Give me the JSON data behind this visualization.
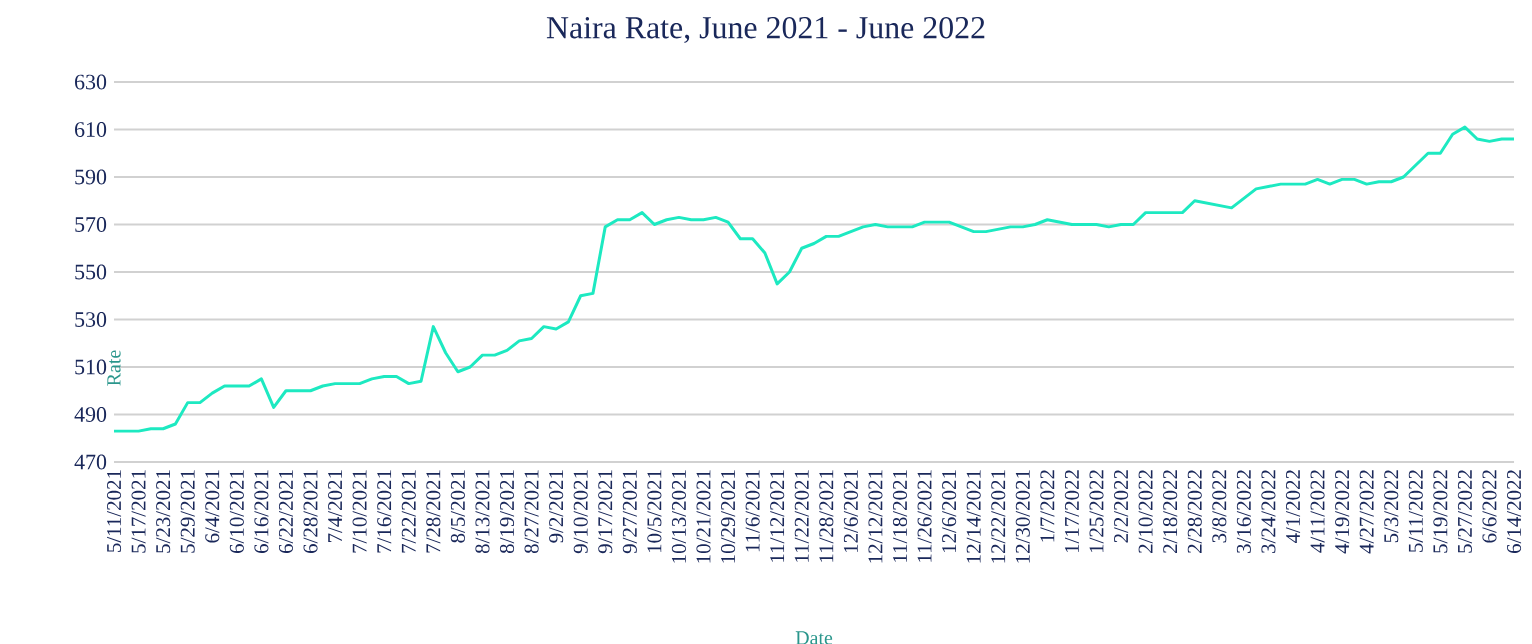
{
  "chart_data": {
    "type": "line",
    "title": "Naira Rate, June 2021 - June 2022",
    "xlabel": "Date",
    "ylabel": "Rate",
    "categories": [
      "5/11/2021",
      null,
      "5/17/2021",
      null,
      "5/23/2021",
      null,
      "5/29/2021",
      null,
      "6/4/2021",
      null,
      "6/10/2021",
      null,
      "6/16/2021",
      null,
      "6/22/2021",
      null,
      "6/28/2021",
      null,
      "7/4/2021",
      null,
      "7/10/2021",
      null,
      "7/16/2021",
      null,
      "7/22/2021",
      null,
      "7/28/2021",
      null,
      "8/5/2021",
      null,
      "8/13/2021",
      null,
      "8/19/2021",
      null,
      "8/27/2021",
      null,
      "9/2/2021",
      null,
      "9/10/2021",
      null,
      "9/17/2021",
      null,
      "9/27/2021",
      null,
      "10/5/2021",
      null,
      "10/13/2021",
      null,
      "10/21/2021",
      null,
      "10/29/2021",
      null,
      "11/6/2021",
      null,
      "11/12/2021",
      null,
      "11/22/2021",
      null,
      "11/28/2021",
      null,
      "12/6/2021",
      null,
      "12/12/2021",
      null,
      "11/18/2021",
      null,
      "11/26/2021",
      null,
      "12/6/2021",
      null,
      "12/14/2021",
      null,
      "12/22/2021",
      null,
      "12/30/2021",
      null,
      "1/7/2022",
      null,
      "1/17/2022",
      null,
      "1/25/2022",
      null,
      "2/2/2022",
      null,
      "2/10/2022",
      null,
      "2/18/2022",
      null,
      "2/28/2022",
      null,
      "3/8/2022",
      null,
      "3/16/2022",
      null,
      "3/24/2022",
      null,
      "4/1/2022",
      null,
      "4/11/2022",
      null,
      "4/19/2022",
      null,
      "4/27/2022",
      null,
      "5/3/2022",
      null,
      "5/11/2022",
      null,
      "5/19/2022",
      null,
      "5/27/2022",
      null,
      "6/6/2022",
      null,
      "6/14/2022"
    ],
    "series": [
      {
        "color": "#1de9c1",
        "values": [
          483,
          483,
          483,
          484,
          484,
          486,
          495,
          495,
          499,
          502,
          502,
          502,
          505,
          493,
          500,
          500,
          500,
          502,
          503,
          503,
          503,
          505,
          506,
          506,
          503,
          504,
          527,
          516,
          508,
          510,
          515,
          515,
          517,
          521,
          522,
          527,
          526,
          529,
          540,
          541,
          569,
          572,
          572,
          575,
          570,
          572,
          573,
          572,
          572,
          573,
          571,
          564,
          564,
          558,
          545,
          550,
          560,
          562,
          565,
          565,
          567,
          569,
          570,
          569,
          569,
          569,
          571,
          571,
          571,
          569,
          567,
          567,
          568,
          569,
          569,
          570,
          572,
          571,
          570,
          570,
          570,
          569,
          570,
          570,
          575,
          575,
          575,
          575,
          580,
          579,
          578,
          577,
          581,
          585,
          586,
          587,
          587,
          587,
          589,
          587,
          589,
          589,
          587,
          588,
          588,
          590,
          595,
          600,
          600,
          608,
          611,
          606,
          605,
          606,
          606
        ]
      }
    ],
    "ylim": [
      470,
      630
    ],
    "yticks": [
      470,
      490,
      510,
      530,
      550,
      570,
      590,
      610,
      630
    ],
    "grid": "y",
    "marker": "none",
    "line_style": "solid"
  }
}
